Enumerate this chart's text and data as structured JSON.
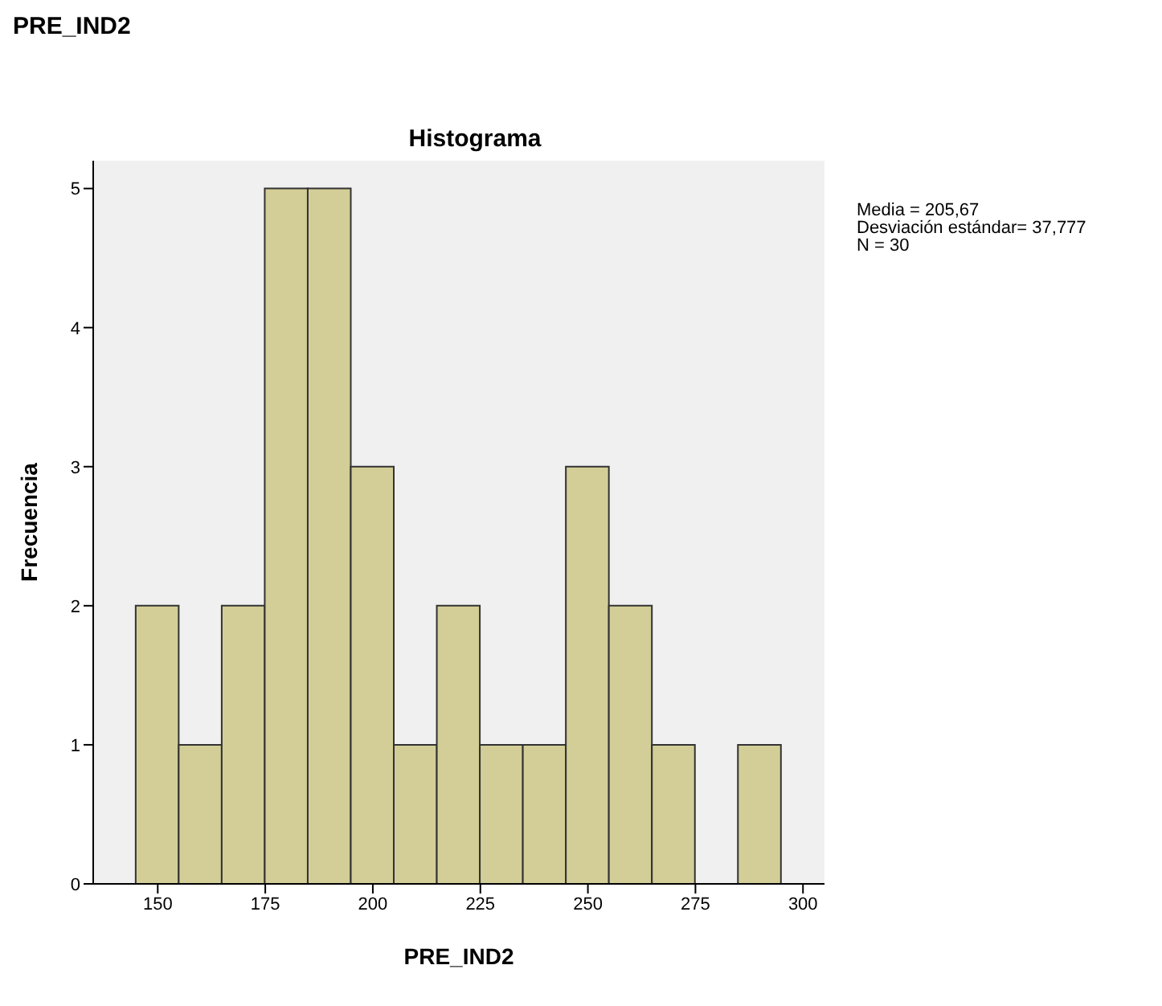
{
  "chart_data": {
    "type": "histogram",
    "title": "Histograma",
    "subtitle": "PRE_IND2",
    "xlabel": "PRE_IND2",
    "ylabel": "Frecuencia",
    "bins": [
      145,
      155,
      165,
      175,
      185,
      195,
      205,
      215,
      225,
      235,
      245,
      255,
      265,
      275,
      285,
      295
    ],
    "values": [
      2,
      1,
      2,
      5,
      5,
      3,
      1,
      2,
      1,
      1,
      3,
      2,
      1,
      0,
      1
    ],
    "color": "#d3ce97",
    "xlim": [
      135,
      305
    ],
    "xticks": [
      150,
      175,
      200,
      225,
      250,
      275,
      300
    ],
    "ylim": [
      0,
      5.2
    ],
    "yticks": [
      0,
      1,
      2,
      3,
      4,
      5
    ],
    "grid": false,
    "annotations": [
      "Media = 205,67",
      "Desviación estándar= 37,777",
      "N = 30"
    ]
  }
}
